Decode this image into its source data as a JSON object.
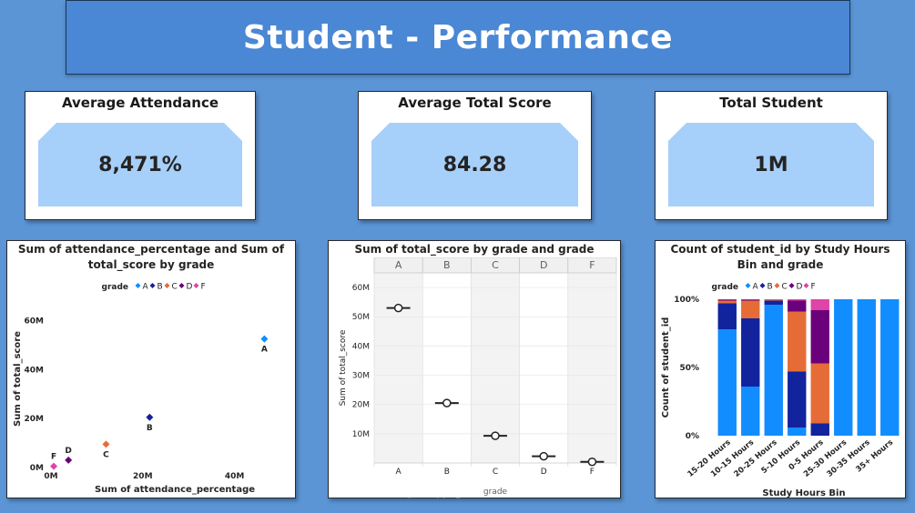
{
  "header": {
    "title": "Student - Performance"
  },
  "kpis": {
    "attendance": {
      "label": "Average Attendance",
      "value": "8,471%"
    },
    "score": {
      "label": "Average Total Score",
      "value": "84.28"
    },
    "students": {
      "label": "Total Student",
      "value": "1M"
    }
  },
  "watermark": "خمسات",
  "colors": {
    "A": "#118dff",
    "B": "#12239e",
    "C": "#e66c37",
    "D": "#6b007b",
    "F": "#e044a7",
    "panel_bg": "#ffffff",
    "page_bg": "#5b95d6",
    "kpi_card": "#a6cffa"
  },
  "chart_data": [
    {
      "type": "scatter",
      "title": "Sum of attendance_percentage and Sum of total_score by grade",
      "xlabel": "Sum of attendance_percentage",
      "ylabel": "Sum of total_score",
      "legend_title": "grade",
      "legend_placement": "top",
      "xlim": [
        0,
        50000000
      ],
      "ylim": [
        0,
        65000000
      ],
      "x_ticks": [
        {
          "v": 0,
          "label": "0M"
        },
        {
          "v": 20000000,
          "label": "20M"
        },
        {
          "v": 40000000,
          "label": "40M"
        }
      ],
      "y_ticks": [
        {
          "v": 0,
          "label": "0M"
        },
        {
          "v": 20000000,
          "label": "20M"
        },
        {
          "v": 40000000,
          "label": "40M"
        },
        {
          "v": 60000000,
          "label": "60M"
        }
      ],
      "points": [
        {
          "grade": "A",
          "x": 46500000,
          "y": 52500000
        },
        {
          "grade": "B",
          "x": 21500000,
          "y": 20500000
        },
        {
          "grade": "C",
          "x": 12000000,
          "y": 9500000
        },
        {
          "grade": "D",
          "x": 3800000,
          "y": 3000000
        },
        {
          "grade": "F",
          "x": 600000,
          "y": 500000
        }
      ]
    },
    {
      "type": "scatter",
      "title": "Sum of total_score by grade and grade",
      "xlabel": "grade",
      "ylabel": "Sum of total_score",
      "grid": true,
      "ylim": [
        0,
        65000000
      ],
      "y_ticks": [
        {
          "v": 10000000,
          "label": "10M"
        },
        {
          "v": 20000000,
          "label": "20M"
        },
        {
          "v": 30000000,
          "label": "30M"
        },
        {
          "v": 40000000,
          "label": "40M"
        },
        {
          "v": 50000000,
          "label": "50M"
        },
        {
          "v": 60000000,
          "label": "60M"
        }
      ],
      "categories": [
        "A",
        "B",
        "C",
        "D",
        "F"
      ],
      "values": [
        53000000,
        20500000,
        9300000,
        2300000,
        400000
      ]
    },
    {
      "type": "bar",
      "stacked": "100%",
      "title": "Count of student_id by Study Hours Bin and grade",
      "xlabel": "Study Hours Bin",
      "ylabel": "Count of student_id",
      "legend_title": "grade",
      "legend_placement": "top",
      "y_ticks": [
        {
          "v": 0,
          "label": "0%"
        },
        {
          "v": 50,
          "label": "50%"
        },
        {
          "v": 100,
          "label": "100%"
        }
      ],
      "categories": [
        "15-20 Hours",
        "10-15 Hours",
        "20-25 Hours",
        "5-10 Hours",
        "0-5 Hours",
        "25-30 Hours",
        "30-35 Hours",
        "35+ Hours"
      ],
      "series": [
        {
          "name": "A",
          "values": [
            78,
            36,
            96,
            6,
            0,
            100,
            100,
            100
          ]
        },
        {
          "name": "B",
          "values": [
            19,
            50,
            3,
            41,
            9,
            0,
            0,
            0
          ]
        },
        {
          "name": "C",
          "values": [
            2,
            13,
            0.5,
            44,
            44,
            0,
            0,
            0
          ]
        },
        {
          "name": "D",
          "values": [
            0.7,
            0.8,
            0.3,
            8,
            39,
            0,
            0,
            0
          ]
        },
        {
          "name": "F",
          "values": [
            0.3,
            0.2,
            0.2,
            1,
            8,
            0,
            0,
            0
          ]
        }
      ]
    }
  ]
}
